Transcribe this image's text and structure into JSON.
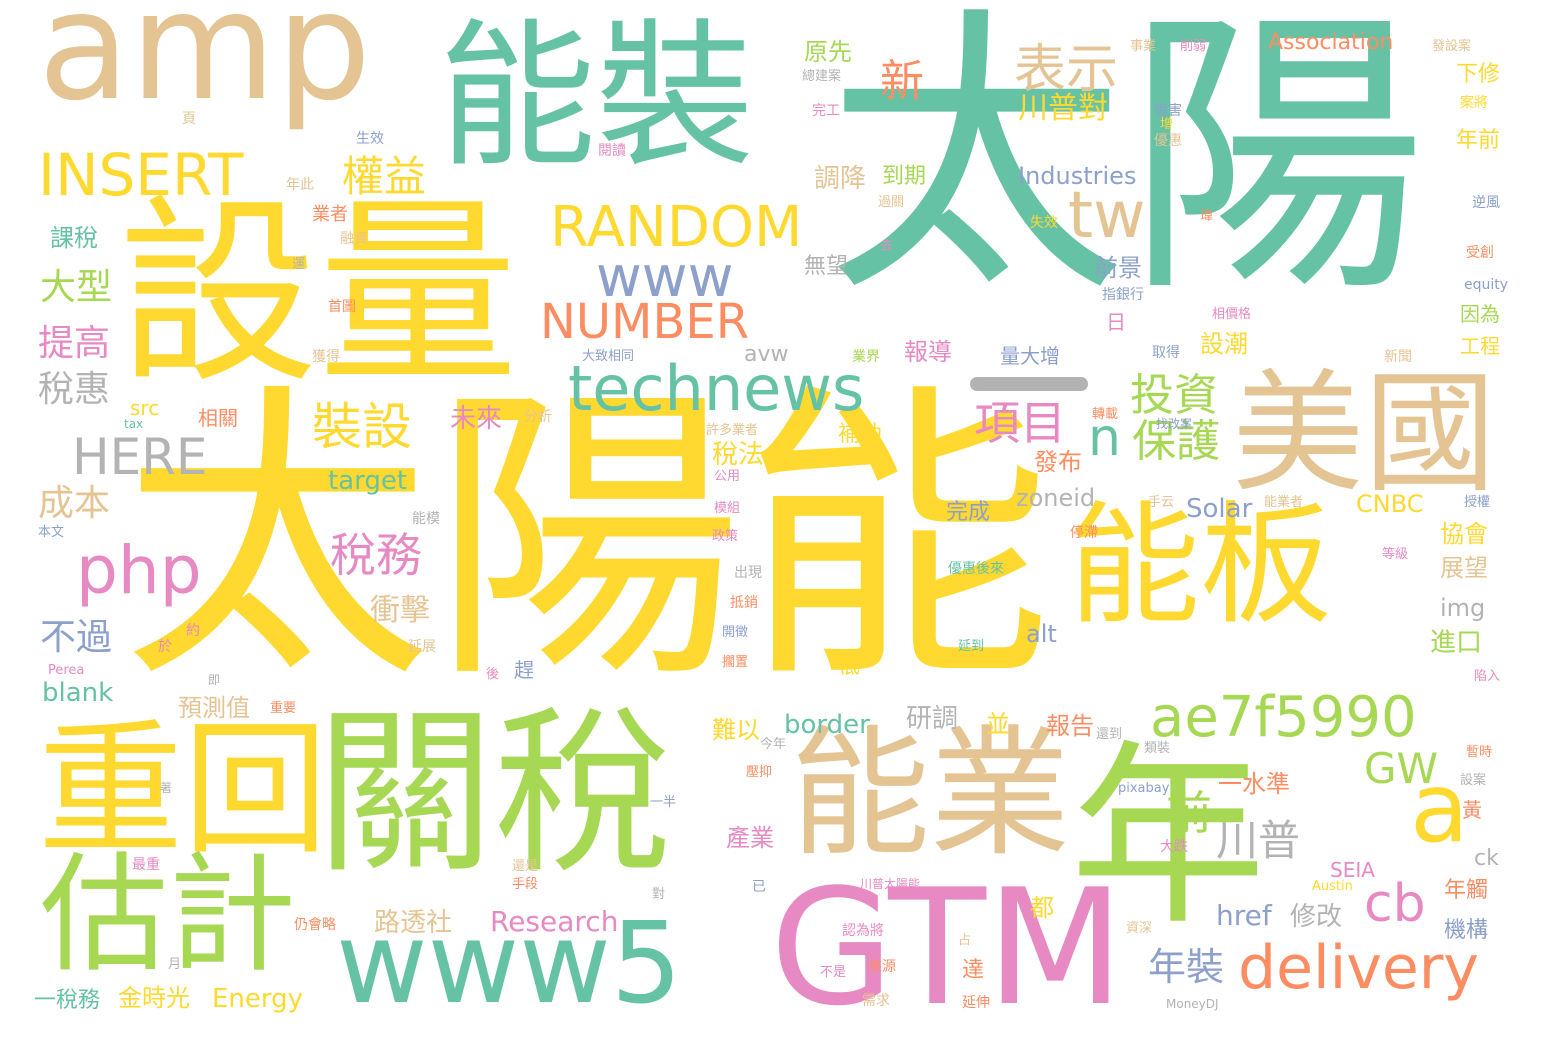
{
  "palette": {
    "teal": "#66c2a5",
    "orange": "#fc8d62",
    "blue": "#8da0cb",
    "pink": "#e78ac3",
    "green": "#a6d854",
    "yellow": "#ffd92f",
    "tan": "#e5c494",
    "gray": "#b3b3b3"
  },
  "words": {
    "w001": "太陽",
    "w002": "太陽能",
    "w003": "設量",
    "w004": "關稅",
    "w005": "能裝",
    "w006": "amp",
    "w007": "重回",
    "w008": "能板",
    "w009": "美國",
    "w010": "能業",
    "w011": "年",
    "w012": "GTM",
    "w013": "估計",
    "w014": "www5",
    "w015": "technews",
    "w016": "a",
    "w017": "delivery",
    "w018": "ae7f5990",
    "w019": "INSERT",
    "w020": "RANDOM",
    "w021": "www",
    "w022": "NUMBER",
    "w023": "php",
    "w024": "tw",
    "w025": "HERE",
    "w026": "表示",
    "w027": "新",
    "w028": "權益",
    "w029": "裝設",
    "w030": "稅務",
    "w031": "項目",
    "w032": "投資",
    "w033": "保護",
    "w034": "n",
    "w035": "GW",
    "w036": "cb",
    "w037": "前",
    "w038": "川普",
    "w039": "年裝",
    "w040": "大型",
    "w041": "提高",
    "w042": "稅惠",
    "w043": "成本",
    "w044": "不過",
    "w045": "川普對",
    "w046": "Association",
    "w047": "Industries",
    "w048": "調降",
    "w049": "到期",
    "w050": "衝擊",
    "w051": "課稅",
    "w052": "原先",
    "w053": "下修",
    "w054": "年前",
    "w055": "前景",
    "w056": "無望",
    "w057": "報導",
    "w058": "設潮",
    "w059": "未來",
    "w060": "稅法",
    "w061": "發布",
    "w062": "完成",
    "w063": "zoneid",
    "w064": "Solar",
    "w065": "CNBC",
    "w066": "協會",
    "w067": "展望",
    "w068": "img",
    "w069": "進口",
    "w070": "alt",
    "w071": "blank",
    "w072": "預測值",
    "w073": "border",
    "w074": "研調",
    "w075": "並",
    "w076": "報告",
    "w077": "一水準",
    "w078": "難以",
    "w079": "產業",
    "w080": "ck",
    "w081": "SEIA",
    "w082": "年觸",
    "w083": "機構",
    "w084": "href",
    "w085": "修改",
    "w086": "Research",
    "w087": "路透社",
    "w088": "都",
    "w089": "達",
    "w090": "金時光",
    "w091": "Energy",
    "w092": "一稅務",
    "w093": "target",
    "w094": "src",
    "w095": "avw",
    "w096": "工程",
    "w097": "因為",
    "w098": "量大增",
    "w099": "日",
    "w100": "補助",
    "w101": "黃",
    "w102": "低",
    "w103": "趕",
    "w104": "相關",
    "w105": "equity",
    "w106": "業者",
    "w107": "生效",
    "w108": "年此",
    "w109": "首圖",
    "w110": "獲得",
    "w111": "分析",
    "w112": "許多業者",
    "w113": "取得",
    "w114": "業界",
    "w115": "新聞",
    "w116": "指銀行",
    "w117": "受創",
    "w118": "逆風",
    "w119": "傷害",
    "w120": "優惠",
    "w121": "失效",
    "w122": "過關",
    "w123": "融資",
    "w124": "本文",
    "w125": "約",
    "w126": "於",
    "w127": "Perea",
    "w128": "延展",
    "w129": "出現",
    "w130": "抵銷",
    "w131": "開徵",
    "w132": "擱置",
    "w133": "一半",
    "w134": "壓抑",
    "w135": "pixabay",
    "w136": "今年",
    "w137": "還到",
    "w138": "類裝",
    "w139": "大跌",
    "w140": "已",
    "w141": "最重",
    "w142": "手段",
    "w143": "還是",
    "w144": "對",
    "w145": "川普太陽能",
    "w146": "認為將",
    "w147": "來源",
    "w148": "需求",
    "w149": "延伸",
    "w150": "不是",
    "w151": "仍會略",
    "w152": "月",
    "w153": "MoneyDJ",
    "w154": "Austin",
    "w155": "資深",
    "w156": "占",
    "w157": "重要",
    "w158": "延到",
    "w159": "優惠後來",
    "w160": "公用",
    "w161": "模組",
    "w162": "政策",
    "w163": "能模",
    "w164": "陷入",
    "w165": "暫時",
    "w166": "設案",
    "w167": "等級",
    "w168": "授權",
    "w169": "能業者",
    "w170": "手云",
    "w171": "停滯",
    "w172": "找改案",
    "w173": "轉載",
    "w174": "大致相同",
    "w175": "相價格",
    "w176": "事業",
    "w177": "削弱",
    "w178": "發設案",
    "w179": "總建案",
    "w180": "完工",
    "w181": "頁",
    "w182": "閱讀",
    "w183": "增",
    "w184": "瑋",
    "w185": "去",
    "w186": "運",
    "w187": "tax",
    "w188": "即",
    "w189": "後",
    "w190": "著",
    "w191": "案將"
  }
}
